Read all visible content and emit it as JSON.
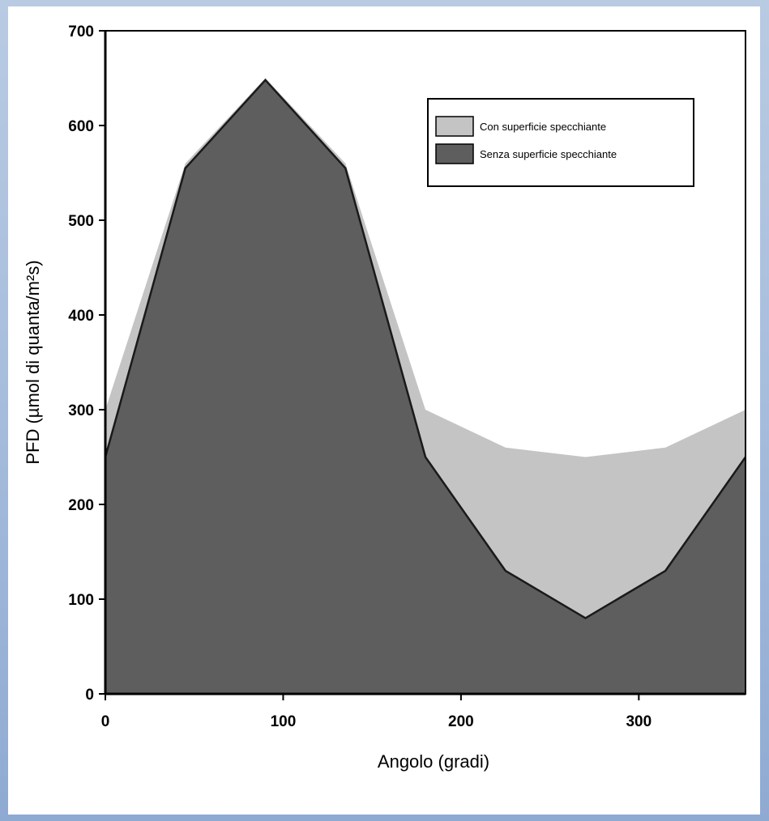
{
  "chart_data": {
    "type": "area",
    "xlabel": "Angolo (gradi)",
    "ylabel": "PFD (µmol di quanta/m²s)",
    "xlim": [
      0,
      360
    ],
    "ylim": [
      0,
      700
    ],
    "x_ticks": [
      0,
      100,
      200,
      300
    ],
    "y_ticks": [
      0,
      100,
      200,
      300,
      400,
      500,
      600,
      700
    ],
    "grid": false,
    "legend_position": "top-right",
    "x": [
      0,
      45,
      90,
      135,
      180,
      225,
      270,
      315,
      360
    ],
    "series": [
      {
        "name": "Con superficie specchiante",
        "color": "#c4c4c4",
        "values": [
          300,
          560,
          650,
          560,
          300,
          260,
          250,
          260,
          300
        ]
      },
      {
        "name": "Senza superficie specchiante",
        "color": "#5e5e5e",
        "values": [
          250,
          555,
          648,
          555,
          250,
          130,
          80,
          130,
          250
        ]
      }
    ]
  }
}
